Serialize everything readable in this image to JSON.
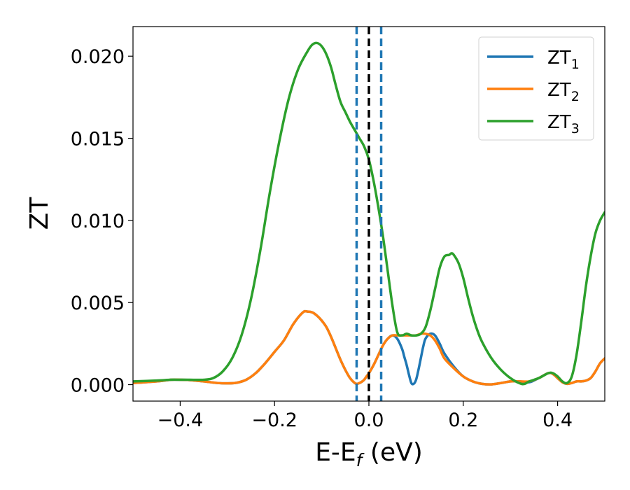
{
  "chart_data": {
    "type": "line",
    "xlabel_main": "E-E",
    "xlabel_sub": "f",
    "xlabel_suffix": " (eV)",
    "ylabel": "ZT",
    "xlim": [
      -0.5,
      0.5
    ],
    "ylim": [
      -0.001,
      0.0218
    ],
    "x_ticks": [
      -0.4,
      -0.2,
      0.0,
      0.2,
      0.4
    ],
    "x_tick_labels": [
      "−0.4",
      "−0.2",
      "0.0",
      "0.2",
      "0.4"
    ],
    "y_ticks": [
      0.0,
      0.005,
      0.01,
      0.015,
      0.02
    ],
    "y_tick_labels": [
      "0.000",
      "0.005",
      "0.010",
      "0.015",
      "0.020"
    ],
    "grid": false,
    "legend_position": "top-right",
    "vlines": [
      {
        "x": 0.0,
        "color": "#000000",
        "style": "dashed"
      },
      {
        "x": -0.026,
        "color": "#1f77b4",
        "style": "dashed"
      },
      {
        "x": 0.026,
        "color": "#1f77b4",
        "style": "dashed"
      }
    ],
    "series": [
      {
        "name": "ZT",
        "subscript": "1",
        "color": "#1f77b4",
        "x": [
          -0.5,
          -0.45,
          -0.42,
          -0.4,
          -0.38,
          -0.35,
          -0.32,
          -0.3,
          -0.28,
          -0.26,
          -0.24,
          -0.22,
          -0.2,
          -0.18,
          -0.16,
          -0.14,
          -0.13,
          -0.12,
          -0.11,
          -0.1,
          -0.09,
          -0.08,
          -0.07,
          -0.06,
          -0.05,
          -0.04,
          -0.03,
          -0.025,
          -0.02,
          -0.015,
          -0.01,
          -0.005,
          0.0,
          0.01,
          0.02,
          0.03,
          0.04,
          0.05,
          0.06,
          0.07,
          0.075,
          0.08,
          0.085,
          0.09,
          0.095,
          0.1,
          0.105,
          0.11,
          0.115,
          0.12,
          0.13,
          0.14,
          0.15,
          0.16,
          0.18,
          0.2,
          0.22,
          0.24,
          0.26,
          0.28,
          0.3,
          0.32,
          0.34,
          0.36,
          0.38,
          0.39,
          0.4,
          0.41,
          0.42,
          0.43,
          0.44,
          0.45,
          0.46,
          0.47,
          0.48,
          0.49,
          0.5
        ],
        "y": [
          0.0001,
          0.0002,
          0.0003,
          0.0003,
          0.00028,
          0.0002,
          0.0001,
          8e-05,
          0.00012,
          0.0003,
          0.0007,
          0.0013,
          0.002,
          0.0027,
          0.0037,
          0.0044,
          0.00445,
          0.0044,
          0.0042,
          0.0039,
          0.0035,
          0.0029,
          0.0022,
          0.0015,
          0.0009,
          0.0004,
          0.0001,
          5e-05,
          0.0001,
          0.00018,
          0.0003,
          0.0005,
          0.0007,
          0.0012,
          0.0018,
          0.0024,
          0.0028,
          0.003,
          0.0028,
          0.0022,
          0.0017,
          0.0012,
          0.0006,
          0.0001,
          5e-05,
          0.0003,
          0.0009,
          0.0016,
          0.0023,
          0.0028,
          0.0031,
          0.003,
          0.0025,
          0.0019,
          0.0011,
          0.0005,
          0.0002,
          5e-05,
          2e-05,
          0.0001,
          0.0002,
          0.0002,
          0.00015,
          0.0004,
          0.0007,
          0.00065,
          0.0004,
          0.00015,
          5e-05,
          0.0001,
          0.0002,
          0.0002,
          0.00025,
          0.0004,
          0.0008,
          0.0013,
          0.0016
        ]
      },
      {
        "name": "ZT",
        "subscript": "2",
        "color": "#ff7f0e",
        "x": [
          -0.5,
          -0.45,
          -0.42,
          -0.4,
          -0.38,
          -0.35,
          -0.32,
          -0.3,
          -0.28,
          -0.26,
          -0.24,
          -0.22,
          -0.2,
          -0.18,
          -0.16,
          -0.14,
          -0.13,
          -0.12,
          -0.11,
          -0.1,
          -0.09,
          -0.08,
          -0.07,
          -0.06,
          -0.05,
          -0.04,
          -0.03,
          -0.025,
          -0.02,
          -0.015,
          -0.01,
          -0.005,
          0.0,
          0.01,
          0.02,
          0.03,
          0.04,
          0.05,
          0.06,
          0.07,
          0.08,
          0.09,
          0.1,
          0.11,
          0.12,
          0.13,
          0.14,
          0.15,
          0.16,
          0.18,
          0.2,
          0.22,
          0.24,
          0.26,
          0.28,
          0.3,
          0.32,
          0.34,
          0.36,
          0.38,
          0.39,
          0.4,
          0.41,
          0.42,
          0.43,
          0.44,
          0.45,
          0.46,
          0.47,
          0.48,
          0.49,
          0.5
        ],
        "y": [
          0.0001,
          0.0002,
          0.0003,
          0.0003,
          0.00028,
          0.0002,
          0.0001,
          8e-05,
          0.00012,
          0.0003,
          0.0007,
          0.0013,
          0.002,
          0.0027,
          0.0037,
          0.0044,
          0.00445,
          0.0044,
          0.0042,
          0.0039,
          0.0035,
          0.0029,
          0.0022,
          0.0015,
          0.0009,
          0.0004,
          0.0001,
          5e-05,
          0.0001,
          0.00018,
          0.0003,
          0.0005,
          0.0007,
          0.0012,
          0.0018,
          0.0024,
          0.0028,
          0.003,
          0.003,
          0.003,
          0.003,
          0.003,
          0.003,
          0.0031,
          0.0031,
          0.003,
          0.0027,
          0.0022,
          0.0016,
          0.001,
          0.0005,
          0.0002,
          5e-05,
          2e-05,
          0.0001,
          0.0002,
          0.0002,
          0.0002,
          0.0004,
          0.0007,
          0.00065,
          0.0004,
          0.00015,
          5e-05,
          0.0001,
          0.0002,
          0.0002,
          0.00025,
          0.0004,
          0.0008,
          0.0013,
          0.0016
        ]
      },
      {
        "name": "ZT",
        "subscript": "3",
        "color": "#2ca02c",
        "x": [
          -0.5,
          -0.45,
          -0.42,
          -0.4,
          -0.38,
          -0.35,
          -0.33,
          -0.31,
          -0.29,
          -0.27,
          -0.25,
          -0.23,
          -0.21,
          -0.19,
          -0.17,
          -0.15,
          -0.13,
          -0.12,
          -0.11,
          -0.1,
          -0.09,
          -0.08,
          -0.07,
          -0.06,
          -0.05,
          -0.04,
          -0.03,
          -0.02,
          -0.01,
          0.0,
          0.01,
          0.02,
          0.03,
          0.04,
          0.05,
          0.06,
          0.07,
          0.08,
          0.09,
          0.1,
          0.11,
          0.12,
          0.13,
          0.14,
          0.15,
          0.16,
          0.17,
          0.175,
          0.18,
          0.19,
          0.2,
          0.21,
          0.22,
          0.23,
          0.24,
          0.26,
          0.28,
          0.3,
          0.32,
          0.33,
          0.34,
          0.36,
          0.38,
          0.39,
          0.4,
          0.41,
          0.42,
          0.43,
          0.44,
          0.45,
          0.46,
          0.47,
          0.48,
          0.49,
          0.5
        ],
        "y": [
          0.0002,
          0.00025,
          0.0003,
          0.0003,
          0.0003,
          0.0003,
          0.0004,
          0.0008,
          0.0016,
          0.003,
          0.0052,
          0.0082,
          0.0117,
          0.0148,
          0.0174,
          0.0192,
          0.0203,
          0.0207,
          0.0208,
          0.0206,
          0.0201,
          0.0193,
          0.0182,
          0.0172,
          0.0166,
          0.016,
          0.0155,
          0.015,
          0.0145,
          0.0137,
          0.0124,
          0.0108,
          0.009,
          0.0069,
          0.0048,
          0.0032,
          0.003,
          0.0031,
          0.003,
          0.003,
          0.0031,
          0.0035,
          0.0045,
          0.0058,
          0.0071,
          0.0078,
          0.0079,
          0.008,
          0.0079,
          0.0074,
          0.0065,
          0.0053,
          0.0042,
          0.0033,
          0.0026,
          0.0016,
          0.0009,
          0.0004,
          8e-05,
          5e-05,
          0.0002,
          0.0004,
          0.0007,
          0.0007,
          0.0005,
          0.0002,
          0.0001,
          0.0005,
          0.0018,
          0.0038,
          0.006,
          0.0078,
          0.0092,
          0.01,
          0.0105
        ]
      }
    ]
  }
}
